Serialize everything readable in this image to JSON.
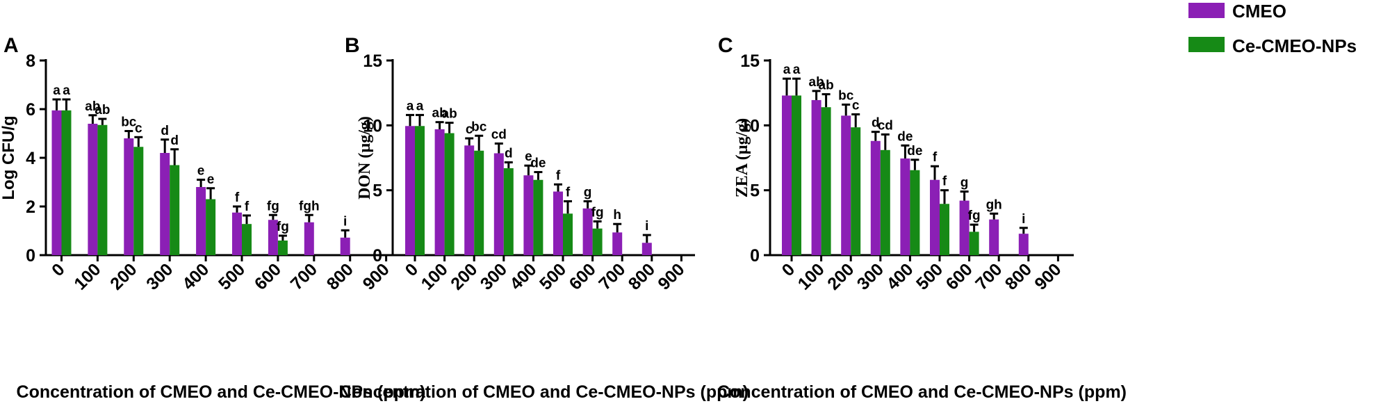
{
  "colors": {
    "cmeo": "#8b1fb5",
    "nps": "#168a16"
  },
  "legend": {
    "position": "top-right",
    "items": [
      {
        "name": "CMEO",
        "color": "#8b1fb5"
      },
      {
        "name": "Ce-CMEO-NPs",
        "color": "#168a16"
      }
    ]
  },
  "chart_data": [
    {
      "panel": "A",
      "type": "bar",
      "xlabel": "Concentration of CMEO and Ce-CMEO-NPs (ppm)",
      "ylabel": "Log CFU/g",
      "ylim": [
        0,
        8
      ],
      "yticks": [
        0,
        2,
        4,
        6,
        8
      ],
      "categories": [
        "0",
        "100",
        "200",
        "300",
        "400",
        "500",
        "600",
        "700",
        "800",
        "900"
      ],
      "series": [
        {
          "name": "CMEO",
          "values": [
            5.95,
            5.4,
            4.8,
            4.2,
            2.8,
            1.75,
            1.45,
            1.35,
            0.72,
            null
          ],
          "errors": [
            0.45,
            0.35,
            0.3,
            0.55,
            0.3,
            0.25,
            0.2,
            0.3,
            0.3,
            null
          ],
          "labels": [
            "a",
            "ab",
            "bc",
            "d",
            "e",
            "f",
            "fg",
            "fgh",
            "i",
            ""
          ]
        },
        {
          "name": "Ce-CMEO-NPs",
          "values": [
            5.95,
            5.35,
            4.45,
            3.7,
            2.3,
            1.28,
            0.6,
            null,
            null,
            null
          ],
          "errors": [
            0.45,
            0.25,
            0.4,
            0.65,
            0.45,
            0.35,
            0.2,
            null,
            null,
            null
          ],
          "labels": [
            "a",
            "ab",
            "c",
            "d",
            "e",
            "f",
            "fg",
            "",
            "",
            ""
          ]
        }
      ]
    },
    {
      "panel": "B",
      "type": "bar",
      "xlabel": "Concentration of CMEO and Ce-CMEO-NPs (ppm)",
      "ylabel": "DON (µg/g)",
      "ylim": [
        0,
        15
      ],
      "yticks": [
        0,
        5,
        10,
        15
      ],
      "categories": [
        "0",
        "100",
        "200",
        "300",
        "400",
        "500",
        "600",
        "700",
        "800",
        "900"
      ],
      "series": [
        {
          "name": "CMEO",
          "values": [
            9.95,
            9.7,
            8.45,
            7.85,
            6.15,
            4.9,
            3.6,
            1.75,
            0.95,
            null
          ],
          "errors": [
            0.85,
            0.55,
            0.55,
            0.75,
            0.75,
            0.55,
            0.55,
            0.65,
            0.6,
            null
          ],
          "labels": [
            "a",
            "ab",
            "c",
            "cd",
            "e",
            "f",
            "g",
            "h",
            "i",
            ""
          ]
        },
        {
          "name": "Ce-CMEO-NPs",
          "values": [
            9.95,
            9.4,
            8.05,
            6.7,
            5.8,
            3.2,
            2.05,
            null,
            null,
            null
          ],
          "errors": [
            0.85,
            0.8,
            1.15,
            0.45,
            0.6,
            0.95,
            0.55,
            null,
            null,
            null
          ],
          "labels": [
            "a",
            "ab",
            "bc",
            "d",
            "de",
            "f",
            "fg",
            "",
            "",
            ""
          ]
        }
      ]
    },
    {
      "panel": "C",
      "type": "bar",
      "xlabel": "Concentration of CMEO and Ce-CMEO-NPs (ppm)",
      "ylabel": "ZEA (µg/g)",
      "ylim": [
        0,
        15
      ],
      "yticks": [
        0,
        5,
        10,
        15
      ],
      "categories": [
        "0",
        "100",
        "200",
        "300",
        "400",
        "500",
        "600",
        "700",
        "800",
        "900"
      ],
      "series": [
        {
          "name": "CMEO",
          "values": [
            12.3,
            11.95,
            10.75,
            8.8,
            7.45,
            5.8,
            4.2,
            2.75,
            1.65,
            null
          ],
          "errors": [
            1.3,
            0.7,
            0.85,
            0.7,
            1.0,
            1.05,
            0.7,
            0.45,
            0.45,
            null
          ],
          "labels": [
            "a",
            "ab",
            "bc",
            "d",
            "de",
            "f",
            "g",
            "gh",
            "i",
            ""
          ]
        },
        {
          "name": "Ce-CMEO-NPs",
          "values": [
            12.3,
            11.4,
            9.85,
            8.1,
            6.55,
            3.95,
            1.8,
            null,
            null,
            null
          ],
          "errors": [
            1.3,
            1.0,
            1.0,
            1.2,
            0.8,
            1.05,
            0.55,
            null,
            null,
            null
          ],
          "labels": [
            "a",
            "ab",
            "c",
            "cd",
            "de",
            "f",
            "fg",
            "",
            "",
            ""
          ]
        }
      ]
    }
  ]
}
